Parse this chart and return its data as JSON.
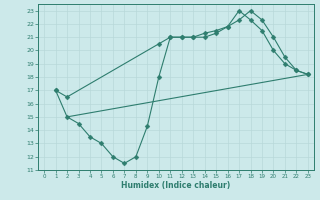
{
  "xlabel": "Humidex (Indice chaleur)",
  "ylabel": "",
  "xlim": [
    -0.5,
    23.5
  ],
  "ylim": [
    11,
    23.5
  ],
  "yticks": [
    11,
    12,
    13,
    14,
    15,
    16,
    17,
    18,
    19,
    20,
    21,
    22,
    23
  ],
  "xticks": [
    0,
    1,
    2,
    3,
    4,
    5,
    6,
    7,
    8,
    9,
    10,
    11,
    12,
    13,
    14,
    15,
    16,
    17,
    18,
    19,
    20,
    21,
    22,
    23
  ],
  "bg_color": "#cce9ea",
  "grid_color": "#b8d8d9",
  "line_color": "#2e7d6e",
  "line1_x": [
    1,
    2,
    10,
    11,
    12,
    13,
    14,
    15,
    16,
    17,
    18,
    19,
    20,
    21,
    22,
    23
  ],
  "line1_y": [
    17.0,
    16.5,
    20.5,
    21.0,
    21.0,
    21.0,
    21.3,
    21.5,
    21.8,
    22.3,
    23.0,
    22.3,
    21.0,
    19.5,
    18.5,
    18.2
  ],
  "line2_x": [
    1,
    2,
    3,
    4,
    5,
    6,
    7,
    8,
    9,
    10,
    11,
    12,
    13,
    14,
    15,
    16,
    17,
    18,
    19,
    20,
    21,
    22,
    23
  ],
  "line2_y": [
    17.0,
    15.0,
    14.5,
    13.5,
    13.0,
    12.0,
    11.5,
    12.0,
    14.3,
    18.0,
    21.0,
    21.0,
    21.0,
    21.0,
    21.3,
    21.8,
    23.0,
    22.3,
    21.5,
    20.0,
    19.0,
    18.5,
    18.2
  ],
  "line3_x": [
    2,
    23
  ],
  "line3_y": [
    15.0,
    18.2
  ],
  "marker": "D",
  "marker_size": 2.5,
  "linewidth": 0.8
}
